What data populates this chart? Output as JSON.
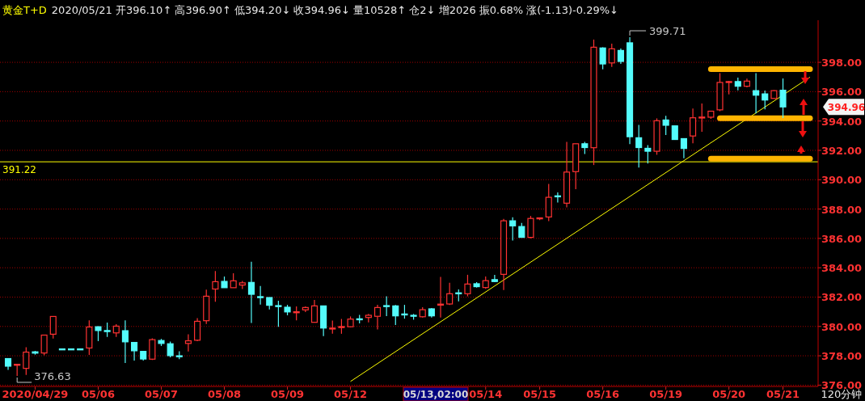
{
  "chart_data": {
    "type": "candlestick",
    "title": "黄金T+D",
    "subtitle": "2020/05/21 开396.10↑ 高396.90↑ 低394.20↓ 收394.96↓ 量10528↑ 仓2↓ 增2026 振0.68% 涨(-1.13)-0.29%↓",
    "categories": [
      null,
      null,
      null,
      "2020/04/29",
      null,
      null,
      null,
      null,
      null,
      null,
      "05/06",
      null,
      null,
      null,
      null,
      null,
      null,
      "05/07",
      null,
      null,
      null,
      null,
      null,
      null,
      "05/08",
      null,
      null,
      null,
      null,
      null,
      null,
      "05/09",
      null,
      null,
      null,
      null,
      null,
      null,
      "05/12",
      null,
      null,
      null,
      null,
      null,
      null,
      null,
      null,
      null,
      null,
      null,
      null,
      null,
      null,
      "05/14",
      null,
      null,
      null,
      null,
      null,
      "05/15",
      null,
      null,
      null,
      null,
      null,
      null,
      "05/16",
      null,
      null,
      null,
      null,
      null,
      null,
      "05/19",
      null,
      null,
      null,
      null,
      null,
      null,
      "05/20",
      null,
      null,
      null,
      null,
      null,
      "05/21",
      null,
      null,
      null
    ],
    "ohlc": [
      [
        377.81,
        377.81,
        377.04,
        377.29
      ],
      [
        377.4,
        377.42,
        376.63,
        377.42
      ],
      [
        377.14,
        378.58,
        376.7,
        378.25
      ],
      [
        378.27,
        378.33,
        378.08,
        378.18
      ],
      [
        378.19,
        379.41,
        378.03,
        379.41
      ],
      [
        379.47,
        380.68,
        379.17,
        380.68
      ],
      [
        378.47,
        378.47,
        378.47,
        378.47
      ],
      [
        378.47,
        378.47,
        378.47,
        378.47
      ],
      [
        378.47,
        378.47,
        378.47,
        378.47
      ],
      [
        378.53,
        380.42,
        378.06,
        379.96
      ],
      [
        379.98,
        380.01,
        379.0,
        379.72
      ],
      [
        379.72,
        380.26,
        379.28,
        379.65
      ],
      [
        379.56,
        380.15,
        379.28,
        380.02
      ],
      [
        379.71,
        380.42,
        377.51,
        378.95
      ],
      [
        378.91,
        378.91,
        377.68,
        378.34
      ],
      [
        378.3,
        378.3,
        377.67,
        377.78
      ],
      [
        377.77,
        379.19,
        377.71,
        379.1
      ],
      [
        379.04,
        379.15,
        378.67,
        378.84
      ],
      [
        378.82,
        378.97,
        377.9,
        378.01
      ],
      [
        378.0,
        378.31,
        377.77,
        377.97
      ],
      [
        378.84,
        379.47,
        378.29,
        379.02
      ],
      [
        379.06,
        380.57,
        378.99,
        380.35
      ],
      [
        380.39,
        382.51,
        380.17,
        382.06
      ],
      [
        382.55,
        383.78,
        381.68,
        383.05
      ],
      [
        383.07,
        383.4,
        382.64,
        382.64
      ],
      [
        382.64,
        383.63,
        382.64,
        383.11
      ],
      [
        382.82,
        383.1,
        382.55,
        382.97
      ],
      [
        383.0,
        384.41,
        380.23,
        382.19
      ],
      [
        382.03,
        382.75,
        381.49,
        382.0
      ],
      [
        381.97,
        381.97,
        381.16,
        381.44
      ],
      [
        381.42,
        381.75,
        379.98,
        381.37
      ],
      [
        381.31,
        381.47,
        380.76,
        380.99
      ],
      [
        380.99,
        381.36,
        380.42,
        381.0
      ],
      [
        381.13,
        381.36,
        380.98,
        381.29
      ],
      [
        380.28,
        381.8,
        380.28,
        381.4
      ],
      [
        381.4,
        381.4,
        379.34,
        379.89
      ],
      [
        379.87,
        380.4,
        379.5,
        379.89
      ],
      [
        379.97,
        380.51,
        379.5,
        379.99
      ],
      [
        379.98,
        380.68,
        379.95,
        380.5
      ],
      [
        380.52,
        380.79,
        380.21,
        380.48
      ],
      [
        380.61,
        380.85,
        380.27,
        380.76
      ],
      [
        380.69,
        381.47,
        379.79,
        381.29
      ],
      [
        381.42,
        382.06,
        380.7,
        381.38
      ],
      [
        381.4,
        381.46,
        380.1,
        380.72
      ],
      [
        380.85,
        381.47,
        380.53,
        380.81
      ],
      [
        380.76,
        380.85,
        380.46,
        380.72
      ],
      [
        380.66,
        381.31,
        380.61,
        381.14
      ],
      [
        381.2,
        381.26,
        380.61,
        380.72
      ],
      [
        381.5,
        383.37,
        380.61,
        381.52
      ],
      [
        381.53,
        382.97,
        381.46,
        382.23
      ],
      [
        382.29,
        382.52,
        381.71,
        382.26
      ],
      [
        382.23,
        383.52,
        382.05,
        382.89
      ],
      [
        382.91,
        383.02,
        382.65,
        382.71
      ],
      [
        382.65,
        383.41,
        382.56,
        383.12
      ],
      [
        383.19,
        383.52,
        383.02,
        383.06
      ],
      [
        383.55,
        387.33,
        382.48,
        387.2
      ],
      [
        387.2,
        387.44,
        385.85,
        386.85
      ],
      [
        386.81,
        387.05,
        386.07,
        386.07
      ],
      [
        386.07,
        387.53,
        386.0,
        387.36
      ],
      [
        387.38,
        387.4,
        387.24,
        387.4
      ],
      [
        387.46,
        389.71,
        387.18,
        388.8
      ],
      [
        388.9,
        389.13,
        388.45,
        388.86
      ],
      [
        388.4,
        392.58,
        388.12,
        390.52
      ],
      [
        390.55,
        392.45,
        389.35,
        392.45
      ],
      [
        392.45,
        392.58,
        391.75,
        392.19
      ],
      [
        392.18,
        399.55,
        391.0,
        399.03
      ],
      [
        398.98,
        399.03,
        397.52,
        397.89
      ],
      [
        397.96,
        399.27,
        397.69,
        398.92
      ],
      [
        398.81,
        398.94,
        397.89,
        398.06
      ],
      [
        399.33,
        399.71,
        392.43,
        392.93
      ],
      [
        392.86,
        393.74,
        390.83,
        392.19
      ],
      [
        392.14,
        392.36,
        391.1,
        391.94
      ],
      [
        391.94,
        394.18,
        391.7,
        394.02
      ],
      [
        394.07,
        394.35,
        393.04,
        393.71
      ],
      [
        393.67,
        393.67,
        392.74,
        392.74
      ],
      [
        392.8,
        392.8,
        391.46,
        392.13
      ],
      [
        392.98,
        394.85,
        392.48,
        394.22
      ],
      [
        394.25,
        395.19,
        393.26,
        394.27
      ],
      [
        394.26,
        394.67,
        394.15,
        394.67
      ],
      [
        394.76,
        397.26,
        394.67,
        396.63
      ],
      [
        396.67,
        396.74,
        395.81,
        396.69
      ],
      [
        396.69,
        396.96,
        396.09,
        396.37
      ],
      [
        396.37,
        396.89,
        396.3,
        396.72
      ],
      [
        396.07,
        397.26,
        394.52,
        395.76
      ],
      [
        395.85,
        396.07,
        394.8,
        395.43
      ],
      [
        395.54,
        396.11,
        395.54,
        396.07
      ],
      [
        396.1,
        396.9,
        394.2,
        394.96
      ],
      null,
      null,
      null
    ],
    "colors": [
      "#54fcfc",
      "#ff3232",
      "#ff3232",
      "#54fcfc",
      "#ff3232",
      "#ff3232",
      "#54fcfc",
      "#54fcfc",
      "#54fcfc",
      "#ff3232",
      "#54fcfc",
      "#54fcfc",
      "#ff3232",
      "#54fcfc",
      "#54fcfc",
      "#54fcfc",
      "#ff3232",
      "#54fcfc",
      "#54fcfc",
      "#54fcfc",
      "#ff3232",
      "#ff3232",
      "#ff3232",
      "#ff3232",
      "#54fcfc",
      "#ff3232",
      "#ff3232",
      "#54fcfc",
      "#54fcfc",
      "#54fcfc",
      "#54fcfc",
      "#54fcfc",
      "#ff3232",
      "#ff3232",
      "#ff3232",
      "#54fcfc",
      "#ff3232",
      "#ff3232",
      "#ff3232",
      "#54fcfc",
      "#ff3232",
      "#ff3232",
      "#54fcfc",
      "#54fcfc",
      "#54fcfc",
      "#54fcfc",
      "#ff3232",
      "#54fcfc",
      "#ff3232",
      "#ff3232",
      "#54fcfc",
      "#ff3232",
      "#54fcfc",
      "#ff3232",
      "#54fcfc",
      "#ff3232",
      "#54fcfc",
      "#54fcfc",
      "#ff3232",
      "#ff3232",
      "#ff3232",
      "#54fcfc",
      "#ff3232",
      "#ff3232",
      "#54fcfc",
      "#ff3232",
      "#54fcfc",
      "#ff3232",
      "#54fcfc",
      "#54fcfc",
      "#54fcfc",
      "#54fcfc",
      "#ff3232",
      "#54fcfc",
      "#54fcfc",
      "#54fcfc",
      "#ff3232",
      "#ff3232",
      "#ff3232",
      "#ff3232",
      "#ff3232",
      "#54fcfc",
      "#ff3232",
      "#54fcfc",
      "#54fcfc",
      "#ff3232",
      "#54fcfc",
      null,
      null,
      null
    ],
    "series": [
      {
        "type": "line",
        "color": "#ffff00",
        "values": [
          null,
          null,
          null,
          null,
          null,
          null,
          null,
          null,
          null,
          null,
          null,
          null,
          null,
          null,
          null,
          null,
          null,
          null,
          null,
          null,
          null,
          null,
          null,
          null,
          null,
          null,
          null,
          null,
          null,
          null,
          null,
          null,
          null,
          null,
          null,
          null,
          null,
          null,
          376.25,
          null,
          null,
          null,
          null,
          null,
          null,
          null,
          null,
          null,
          null,
          null,
          null,
          null,
          null,
          null,
          null,
          null,
          null,
          null,
          null,
          null,
          null,
          null,
          null,
          null,
          null,
          null,
          null,
          null,
          null,
          null,
          null,
          null,
          null,
          null,
          null,
          null,
          null,
          null,
          null,
          null,
          null,
          null,
          null,
          null,
          null,
          null,
          null,
          null,
          null,
          396.99
        ]
      },
      {
        "type": "line",
        "color": "#ffb400",
        "values": [
          null,
          null,
          null,
          null,
          null,
          null,
          null,
          null,
          null,
          null,
          null,
          null,
          null,
          null,
          null,
          null,
          null,
          null,
          null,
          null,
          null,
          null,
          null,
          null,
          null,
          null,
          null,
          null,
          null,
          null,
          null,
          null,
          null,
          null,
          null,
          null,
          null,
          null,
          null,
          null,
          null,
          null,
          null,
          null,
          null,
          null,
          null,
          null,
          null,
          null,
          null,
          null,
          null,
          null,
          null,
          null,
          null,
          null,
          null,
          null,
          null,
          null,
          null,
          null,
          null,
          null,
          null,
          null,
          null,
          null,
          null,
          null,
          null,
          null,
          null,
          null,
          null,
          null,
          397.54,
          null,
          null,
          null,
          null,
          null,
          null,
          null,
          null,
          null,
          null,
          397.54
        ]
      },
      {
        "type": "line",
        "color": "#ffb400",
        "values": [
          null,
          null,
          null,
          null,
          null,
          null,
          null,
          null,
          null,
          null,
          null,
          null,
          null,
          null,
          null,
          null,
          null,
          null,
          null,
          null,
          null,
          null,
          null,
          null,
          null,
          null,
          null,
          null,
          null,
          null,
          null,
          null,
          null,
          null,
          null,
          null,
          null,
          null,
          null,
          null,
          null,
          null,
          null,
          null,
          null,
          null,
          null,
          null,
          null,
          null,
          null,
          null,
          null,
          null,
          null,
          null,
          null,
          null,
          null,
          null,
          null,
          null,
          null,
          null,
          null,
          null,
          null,
          null,
          null,
          null,
          null,
          null,
          null,
          null,
          null,
          null,
          null,
          null,
          null,
          394.19,
          null,
          null,
          null,
          null,
          null,
          null,
          null,
          null,
          null,
          394.19
        ]
      },
      {
        "type": "line",
        "color": "#ffb400",
        "values": [
          null,
          null,
          null,
          null,
          null,
          null,
          null,
          null,
          null,
          null,
          null,
          null,
          null,
          null,
          null,
          null,
          null,
          null,
          null,
          null,
          null,
          null,
          null,
          null,
          null,
          null,
          null,
          null,
          null,
          null,
          null,
          null,
          null,
          null,
          null,
          null,
          null,
          null,
          null,
          null,
          null,
          null,
          null,
          null,
          null,
          null,
          null,
          null,
          null,
          null,
          null,
          null,
          null,
          null,
          null,
          null,
          null,
          null,
          null,
          null,
          null,
          null,
          null,
          null,
          null,
          null,
          null,
          null,
          null,
          null,
          null,
          null,
          null,
          null,
          null,
          null,
          null,
          null,
          391.43,
          null,
          null,
          null,
          null,
          null,
          null,
          null,
          null,
          null,
          null,
          391.43
        ]
      }
    ],
    "ref_lines": [
      {
        "axis": "y",
        "value": 391.22,
        "label": "391.22",
        "color": "#ffff00"
      }
    ],
    "annotations": [
      "399.71",
      "376.63",
      "394.96",
      "05/13,02:00",
      "120分钟"
    ],
    "ylim": [
      375.91,
      400.87
    ],
    "yticks": [
      {
        "value": 376,
        "label": "376.00"
      },
      {
        "value": 378,
        "label": "378.00"
      },
      {
        "value": 380,
        "label": "380.00"
      },
      {
        "value": 382,
        "label": "382.00"
      },
      {
        "value": 384,
        "label": "384.00"
      },
      {
        "value": 386,
        "label": "386.00"
      },
      {
        "value": 388,
        "label": "388.00"
      },
      {
        "value": 390,
        "label": "390.00"
      },
      {
        "value": 392,
        "label": "392.00"
      },
      {
        "value": 394,
        "label": "394.00"
      },
      {
        "value": 396,
        "label": "396.00"
      },
      {
        "value": 398,
        "label": "398.00"
      }
    ],
    "grid": "y"
  }
}
